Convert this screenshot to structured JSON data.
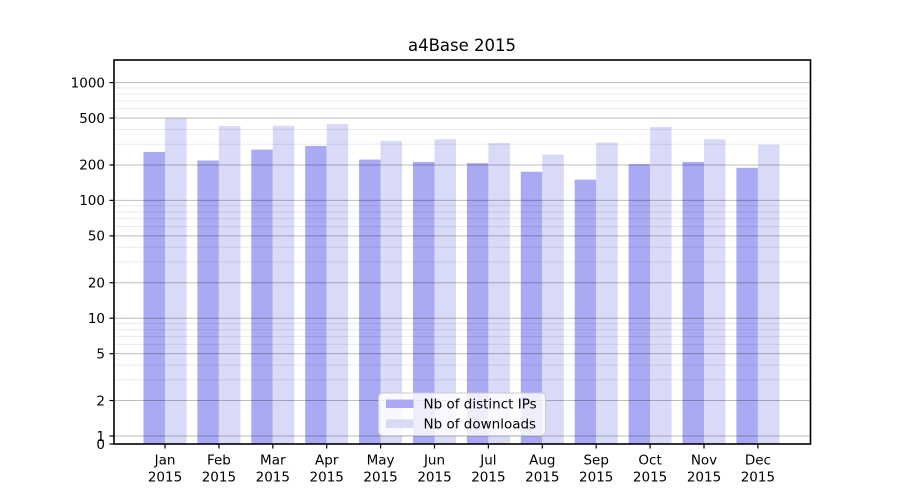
{
  "chart_data": {
    "type": "bar",
    "title": "a4Base 2015",
    "categories": [
      "Jan 2015",
      "Feb 2015",
      "Mar 2015",
      "Apr 2015",
      "May 2015",
      "Jun 2015",
      "Jul 2015",
      "Aug 2015",
      "Sep 2015",
      "Oct 2015",
      "Nov 2015",
      "Dec 2015"
    ],
    "series": [
      {
        "name": "Nb of distinct IPs",
        "color": "#a9a9f4",
        "values": [
          258,
          218,
          270,
          290,
          222,
          212,
          207,
          175,
          150,
          203,
          212,
          189
        ]
      },
      {
        "name": "Nb of downloads",
        "color": "#d9d9f8",
        "values": [
          500,
          428,
          430,
          445,
          320,
          330,
          307,
          245,
          310,
          420,
          330,
          297
        ]
      }
    ],
    "xlabel": "",
    "ylabel": "",
    "y_scale": "log-with-zero-baseline",
    "y_ticks": [
      0,
      1,
      2,
      5,
      10,
      20,
      50,
      100,
      200,
      500,
      1000
    ],
    "ylim": [
      0,
      1560
    ],
    "grid": {
      "horizontal_major": true,
      "horizontal_minor": true
    },
    "legend": {
      "position": "lower center"
    }
  },
  "colors": {
    "bar_distinct_ips": "#a9a9f4",
    "bar_downloads": "#d9d9f8",
    "grid_major": "rgba(0,0,0,0.26)",
    "grid_minor": "rgba(0,0,0,0.08)",
    "spine": "#000000",
    "legend_border": "#cccccc",
    "legend_bg": "rgba(255,255,255,0.8)"
  }
}
